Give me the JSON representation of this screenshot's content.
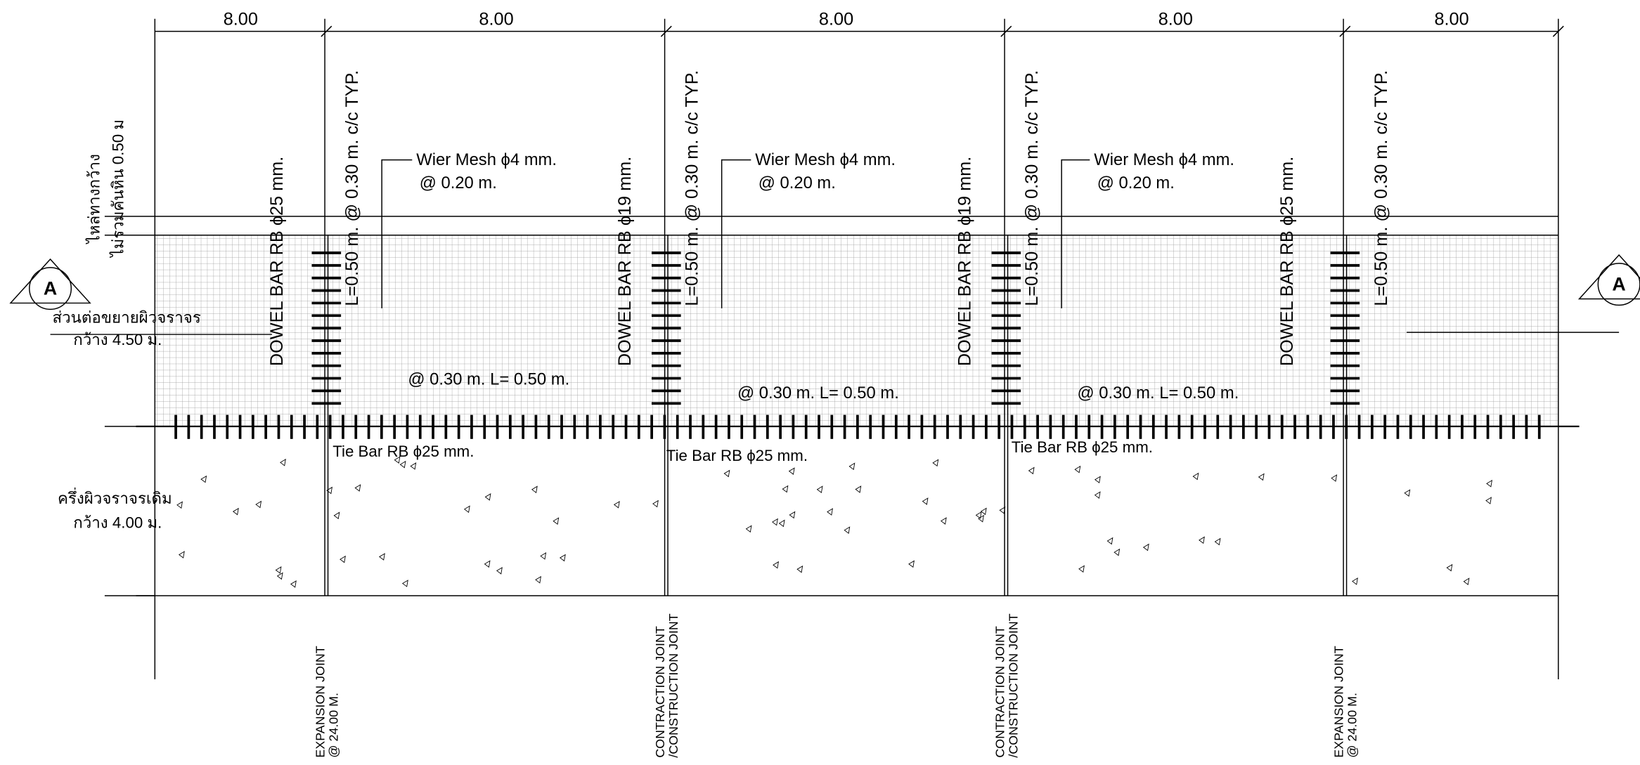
{
  "dimensions": [
    "8.00",
    "8.00",
    "8.00",
    "8.00",
    "8.00"
  ],
  "left_labels": {
    "shoulder": [
      "ไหล่ทางกว้าง",
      "ไม่รวมคันหิน 0.50 ม"
    ],
    "extension": [
      "ส่วนต่อขยายผิวจราจร",
      "กว้าง 4.50 ม."
    ],
    "existing": [
      "ครึ่งผิวจราจรเดิม",
      "กว้าง 4.00 ม."
    ]
  },
  "section_marks": [
    "A",
    "A"
  ],
  "dowel_bars": [
    "DOWEL BAR RB ϕ25 mm.",
    "DOWEL BAR RB ϕ19 mm.",
    "DOWEL BAR RB ϕ19 mm.",
    "DOWEL BAR RB ϕ25 mm."
  ],
  "dowel_spacing": [
    "L=0.50 m. @ 0.30 m. c/c TYP.",
    "L=0.50 m. @ 0.30 m. c/c TYP.",
    "L=0.50 m. @ 0.30 m. c/c TYP.",
    "L=0.50 m. @ 0.30 m. c/c TYP."
  ],
  "mesh_notes": [
    [
      "Wier Mesh ϕ4 mm.",
      "@ 0.20 m."
    ],
    [
      "Wier Mesh ϕ4 mm.",
      "@ 0.20 m."
    ],
    [
      "Wier Mesh ϕ4 mm.",
      "@ 0.20 m."
    ]
  ],
  "tie_bar_spacing": [
    "@ 0.30 m. L= 0.50 m.",
    "@ 0.30 m. L= 0.50 m.",
    "@ 0.30 m. L= 0.50 m."
  ],
  "tie_bars": [
    "Tie Bar RB ϕ25 mm.",
    "Tie Bar RB ϕ25 mm.",
    "Tie Bar RB ϕ25 mm."
  ],
  "joints": [
    [
      "EXPANSION JOINT",
      "@ 24.00 M."
    ],
    [
      "CONTRACTION JOINT",
      "/CONSTRUCTION JOINT"
    ],
    [
      "CONTRACTION JOINT",
      "/CONSTRUCTION JOINT"
    ],
    [
      "EXPANSION JOINT",
      "@ 24.00 M."
    ]
  ]
}
